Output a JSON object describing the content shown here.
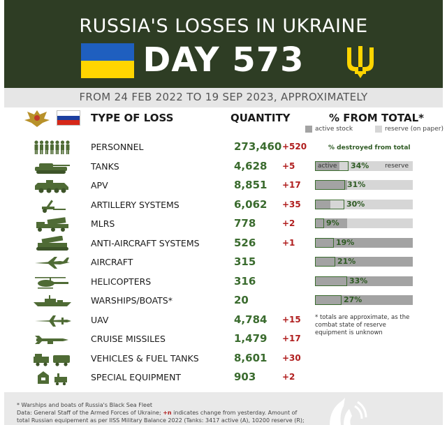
{
  "header": {
    "title": "RUSSIA'S LOSSES IN UKRAINE",
    "day_label": "DAY 573",
    "colors": {
      "background": "#2e3d24",
      "flag_blue": "#1f5fbf",
      "flag_yellow": "#ffd500",
      "trident": "#ffd500"
    }
  },
  "subtitle": "FROM 24 FEB 2022 TO 19 SEP 2023, APPROXIMATELY",
  "columns": {
    "type": "TYPE OF LOSS",
    "quantity": "QUANTITY",
    "percent": "% FROM TOTAL*"
  },
  "legend": {
    "active": "active stock",
    "reserve": "reserve (on paper)",
    "destroyed": "% destroyed from total",
    "bar_active": "active",
    "bar_reserve": "reserve"
  },
  "rows": [
    {
      "icon": "soldiers-icon",
      "label": "PERSONNEL",
      "qty": "273,460",
      "change": "+520"
    },
    {
      "icon": "tank-icon",
      "label": "TANKS",
      "qty": "4,628",
      "change": "+5",
      "pct": "34%",
      "destroyed": 0.34,
      "active_share": 0.25
    },
    {
      "icon": "apv-icon",
      "label": "APV",
      "qty": "8,851",
      "change": "+17",
      "pct": "31%",
      "destroyed": 0.31,
      "active_share": 0.33
    },
    {
      "icon": "artillery-icon",
      "label": "ARTILLERY SYSTEMS",
      "qty": "6,062",
      "change": "+35",
      "pct": "30%",
      "destroyed": 0.3,
      "active_share": 0.16
    },
    {
      "icon": "mlrs-icon",
      "label": "MLRS",
      "qty": "778",
      "change": "+2",
      "pct": "9%",
      "destroyed": 0.09,
      "active_share": 0.33
    },
    {
      "icon": "anti-aircraft-icon",
      "label": "ANTI-AIRCRAFT SYSTEMS",
      "qty": "526",
      "change": "+1",
      "pct": "19%",
      "destroyed": 0.19,
      "active_share": 1.0
    },
    {
      "icon": "aircraft-icon",
      "label": "AIRCRAFT",
      "qty": "315",
      "change": "",
      "pct": "21%",
      "destroyed": 0.21,
      "active_share": 1.0
    },
    {
      "icon": "helicopter-icon",
      "label": "HELICOPTERS",
      "qty": "316",
      "change": "",
      "pct": "33%",
      "destroyed": 0.33,
      "active_share": 1.0
    },
    {
      "icon": "warship-icon",
      "label": "WARSHIPS/BOATS*",
      "qty": "20",
      "change": "",
      "pct": "27%",
      "destroyed": 0.27,
      "active_share": 1.0
    },
    {
      "icon": "uav-icon",
      "label": "UAV",
      "qty": "4,784",
      "change": "+15"
    },
    {
      "icon": "cruise-missile-icon",
      "label": "CRUISE MISSILES",
      "qty": "1,479",
      "change": "+17"
    },
    {
      "icon": "vehicles-icon",
      "label": "VEHICLES & FUEL TANKS",
      "qty": "8,601",
      "change": "+30"
    },
    {
      "icon": "special-equipment-icon",
      "label": "SPECIAL EQUIPMENT",
      "qty": "903",
      "change": "+2"
    }
  ],
  "note": "* totals are approximate, as the combat state of reserve equipment is unknown",
  "footer": {
    "line1": "* Warships and boats of Russia's Black Sea Fleet",
    "line2_a": "Data: General Staff of the Armed Forces of Ukraine; ",
    "line2_red": "+n",
    "line2_b": " indicates change from yesterday. Amount of",
    "line3": "total Russian equipement as per IISS Military Balance 2022 (Tanks: 3417 active (A), 10200 reserve (R);"
  }
}
